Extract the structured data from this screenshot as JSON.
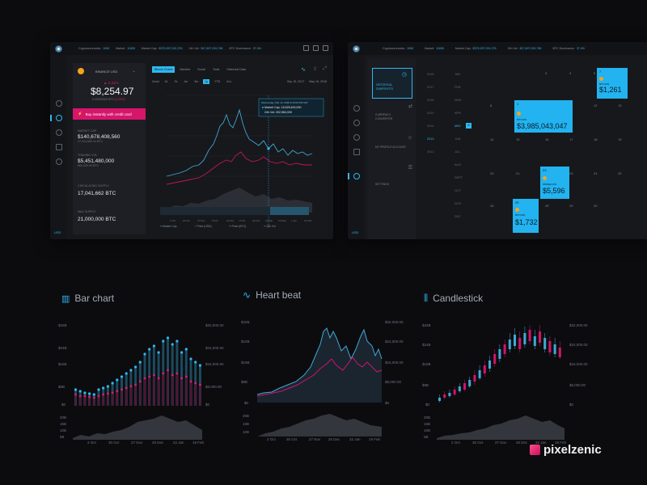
{
  "topbar": {
    "stats": [
      {
        "label": "Cryptocurrencies:",
        "value": "1006"
      },
      {
        "label": "Market:",
        "value": "11605"
      },
      {
        "label": "Market Cap:",
        "value": "$375,997,091,376"
      },
      {
        "label": "24h Vol:",
        "value": "$17,607,091,798"
      },
      {
        "label": "BTC Dominance:",
        "value": "37.4%"
      }
    ]
  },
  "sidebar": {
    "currency": "USD"
  },
  "left_window": {
    "coin_name": "BINANCE USD",
    "change": "▲ 2.41%",
    "price": "$8,254.97",
    "price_sub": "0.00000000 BTC",
    "price_sub_change": "(0.00%)",
    "buy_button": "Buy instantly with credit card",
    "stats": [
      {
        "label": "MARKET CAP",
        "value": "$140,678,408,560",
        "sub": "17,041,662.41 BTC"
      },
      {
        "label": "TRADING VOL",
        "value": "$5,451,480,000",
        "sub": "660,000.00 BTC"
      },
      {
        "label": "CIRCULATING SUPPLY",
        "value": "17,041,662",
        "unit": "BTC"
      },
      {
        "label": "MAX SUPPLY",
        "value": "21,000,000",
        "unit": "BTC"
      }
    ],
    "chart_tabs": [
      "Bitcoin Charts",
      "Markets",
      "Social",
      "Tools",
      "Historical Data"
    ],
    "zoom_label": "Zoom",
    "zoom_options": [
      "1d",
      "7d",
      "1m",
      "3m",
      "1y",
      "YTD",
      "ALL"
    ],
    "zoom_active": "1y",
    "date_from": "Sep 15, 2017",
    "date_to": "May 15, 2018",
    "tooltip": {
      "date": "Wednesday, Mar 14, 2018 9:13:00 PM CET",
      "mcap": "Market Cap: 18,525,400,000",
      "vol": "24h Vol: 202,584,000"
    },
    "x_ticks": [
      "2 Oct",
      "20 Oct",
      "27 Nov",
      "5 Feb",
      "23 Dec",
      "8 Jan",
      "23 Feb",
      "16 Mar",
      "19 May",
      "1 Apr",
      "19 Feb"
    ],
    "legend": [
      "Market Cap",
      "Price (USD)",
      "Price (BTC)",
      "24h Vol"
    ]
  },
  "right_window": {
    "menu": [
      {
        "label": "HISTORICAL SNAPSHOTS",
        "active": true
      },
      {
        "label": "CURRENCY CONVERTER",
        "active": false
      },
      {
        "label": "MY PROFILE ACCOUNT",
        "active": false
      },
      {
        "label": "SETTINGS",
        "active": false
      }
    ],
    "years": [
      "2018",
      "2017",
      "2016",
      "2015",
      "2014",
      "2013",
      "2012"
    ],
    "year_active": "2013",
    "months": [
      "JAN",
      "FEB",
      "MAR",
      "APR",
      "MAY",
      "JUN",
      "JUL",
      "AUG",
      "SEPT",
      "OCT",
      "NOV",
      "DEC"
    ],
    "month_active": "MAY",
    "day_badge": "8",
    "days": [
      "1",
      "2",
      "3",
      "4",
      "5",
      "6",
      "7",
      "8",
      "9",
      "10",
      "11",
      "12",
      "13",
      "14",
      "15",
      "16",
      "17",
      "18",
      "19",
      "20",
      "21",
      "22",
      "23",
      "24",
      "25",
      "26",
      "27",
      "28",
      "29",
      "30",
      "31"
    ],
    "tiles": [
      {
        "day": "1",
        "coin": "BITCOIN",
        "value": "$3,985,043,047"
      },
      {
        "day": "7",
        "coin": "BITCOIN",
        "value": "$1,261"
      },
      {
        "day": "23",
        "coin": "PRIMECOIN",
        "value": "$5,596"
      },
      {
        "day": "29",
        "coin": "BITCOIN",
        "value": "$1,732"
      }
    ]
  },
  "sections": {
    "bar": {
      "title": "Bar chart"
    },
    "heart": {
      "title": "Heart beat"
    },
    "candle": {
      "title": "Candlestick"
    }
  },
  "mini_axes": {
    "left": [
      "$32B",
      "$24B",
      "$16B",
      "$8B",
      "$0"
    ],
    "right": [
      "$32,000.00",
      "$24,000.00",
      "$16,000.00",
      "$8,000.00",
      "$0"
    ],
    "vol": [
      "20B",
      "15B",
      "10B",
      "5B",
      "0"
    ],
    "x": [
      "2 Oct",
      "30 Oct",
      "27 Nov",
      "25 Dec",
      "22 Jan",
      "19 Feb"
    ]
  },
  "brand": "pixelzenic",
  "colors": {
    "accent": "#2eb8f0",
    "pink": "#e0196a",
    "bg": "#0c0c0f",
    "panel": "#17181c"
  }
}
